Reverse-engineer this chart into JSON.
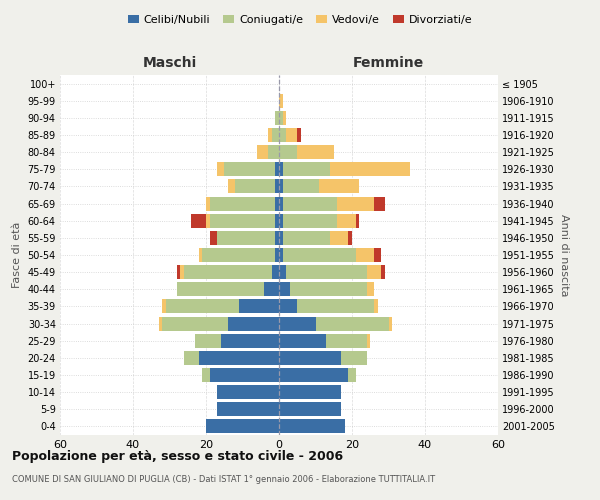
{
  "age_groups": [
    "0-4",
    "5-9",
    "10-14",
    "15-19",
    "20-24",
    "25-29",
    "30-34",
    "35-39",
    "40-44",
    "45-49",
    "50-54",
    "55-59",
    "60-64",
    "65-69",
    "70-74",
    "75-79",
    "80-84",
    "85-89",
    "90-94",
    "95-99",
    "100+"
  ],
  "birth_years": [
    "2001-2005",
    "1996-2000",
    "1991-1995",
    "1986-1990",
    "1981-1985",
    "1976-1980",
    "1971-1975",
    "1966-1970",
    "1961-1965",
    "1956-1960",
    "1951-1955",
    "1946-1950",
    "1941-1945",
    "1936-1940",
    "1931-1935",
    "1926-1930",
    "1921-1925",
    "1916-1920",
    "1911-1915",
    "1906-1910",
    "≤ 1905"
  ],
  "males": {
    "celibi": [
      20,
      17,
      17,
      19,
      22,
      16,
      14,
      11,
      4,
      2,
      1,
      1,
      1,
      1,
      1,
      1,
      0,
      0,
      0,
      0,
      0
    ],
    "coniugati": [
      0,
      0,
      0,
      2,
      4,
      7,
      18,
      20,
      24,
      24,
      20,
      16,
      18,
      18,
      11,
      14,
      3,
      2,
      1,
      0,
      0
    ],
    "vedovi": [
      0,
      0,
      0,
      0,
      0,
      0,
      1,
      1,
      0,
      1,
      1,
      0,
      1,
      1,
      2,
      2,
      3,
      1,
      0,
      0,
      0
    ],
    "divorziati": [
      0,
      0,
      0,
      0,
      0,
      0,
      0,
      0,
      0,
      1,
      0,
      2,
      4,
      0,
      0,
      0,
      0,
      0,
      0,
      0,
      0
    ]
  },
  "females": {
    "nubili": [
      18,
      17,
      17,
      19,
      17,
      13,
      10,
      5,
      3,
      2,
      1,
      1,
      1,
      1,
      1,
      1,
      0,
      0,
      0,
      0,
      0
    ],
    "coniugate": [
      0,
      0,
      0,
      2,
      7,
      11,
      20,
      21,
      21,
      22,
      20,
      13,
      15,
      15,
      10,
      13,
      5,
      2,
      1,
      0,
      0
    ],
    "vedove": [
      0,
      0,
      0,
      0,
      0,
      1,
      1,
      1,
      2,
      4,
      5,
      5,
      5,
      10,
      11,
      22,
      10,
      3,
      1,
      1,
      0
    ],
    "divorziate": [
      0,
      0,
      0,
      0,
      0,
      0,
      0,
      0,
      0,
      1,
      2,
      1,
      1,
      3,
      0,
      0,
      0,
      1,
      0,
      0,
      0
    ]
  },
  "colors": {
    "celibi_nubili": "#3a6ea5",
    "coniugati_e": "#b5c98e",
    "vedovi_e": "#f5c469",
    "divorziati_e": "#c0392b"
  },
  "xlim": 60,
  "xlabel_maschi": "Maschi",
  "xlabel_femmine": "Femmine",
  "ylabel_left": "Fasce di età",
  "ylabel_right": "Anni di nascita",
  "title": "Popolazione per età, sesso e stato civile - 2006",
  "subtitle": "COMUNE DI SAN GIULIANO DI PUGLIA (CB) - Dati ISTAT 1° gennaio 2006 - Elaborazione TUTTITALIA.IT",
  "legend_labels": [
    "Celibi/Nubili",
    "Coniugati/e",
    "Vedovi/e",
    "Divorziati/e"
  ],
  "bg_color": "#f0f0eb",
  "plot_bg_color": "#ffffff",
  "grid_color": "#cccccc"
}
